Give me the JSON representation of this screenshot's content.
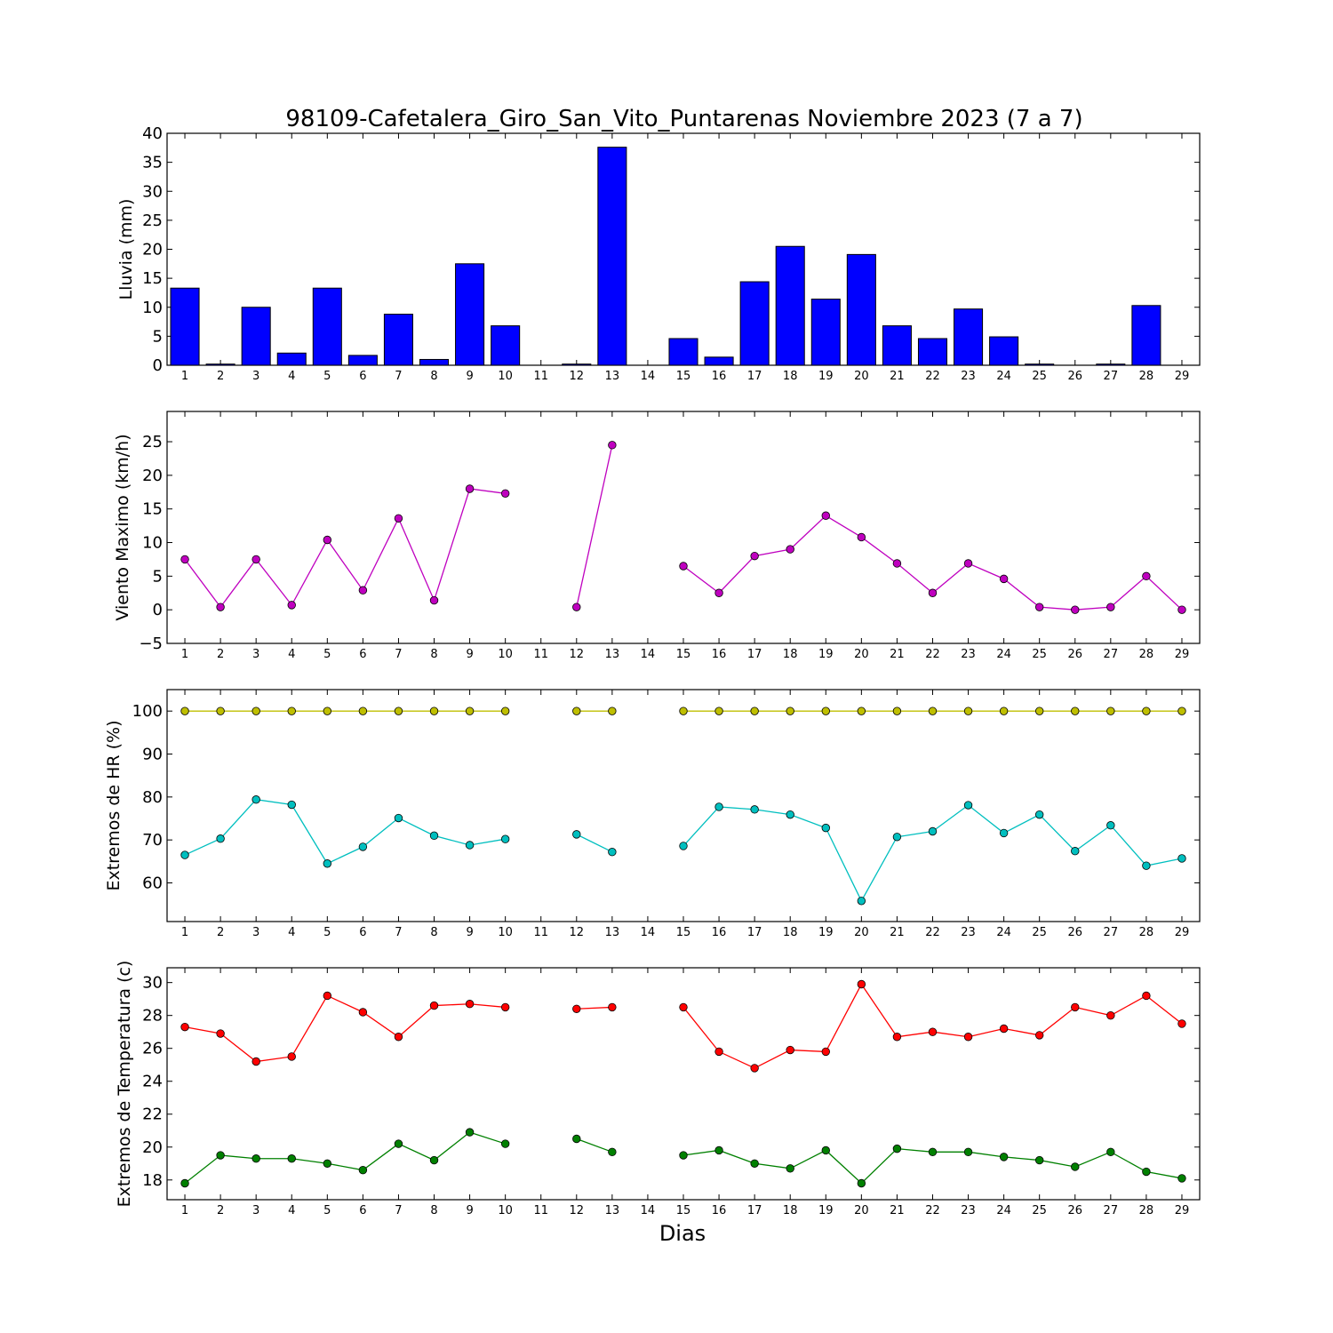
{
  "title": "98109-Cafetalera_Giro_San_Vito_Puntarenas Noviembre 2023  (7 a 7)",
  "xlabel": "Dias",
  "chart_data": [
    {
      "type": "bar",
      "ylabel": "Lluvia (mm)",
      "ylim": [
        0,
        40
      ],
      "yticks": [
        0,
        5,
        10,
        15,
        20,
        25,
        30,
        35,
        40
      ],
      "categories": [
        1,
        2,
        3,
        4,
        5,
        6,
        7,
        8,
        9,
        10,
        11,
        12,
        13,
        14,
        15,
        16,
        17,
        18,
        19,
        20,
        21,
        22,
        23,
        24,
        25,
        26,
        27,
        28,
        29
      ],
      "series": [
        {
          "color": "#0000ff",
          "values": [
            13.3,
            0.2,
            10.0,
            2.1,
            13.3,
            1.7,
            8.8,
            1.0,
            17.5,
            6.8,
            0.0,
            0.2,
            37.6,
            0.0,
            4.6,
            1.4,
            14.4,
            20.5,
            11.4,
            19.1,
            6.8,
            4.6,
            9.7,
            4.9,
            0.2,
            0.0,
            0.2,
            10.3,
            0.0
          ]
        }
      ],
      "grid": false
    },
    {
      "type": "line",
      "ylabel": "Viento Maximo (km/h)",
      "ylim": [
        -5,
        29.5
      ],
      "yticks": [
        -5,
        0,
        5,
        10,
        15,
        20,
        25
      ],
      "x": [
        1,
        2,
        3,
        4,
        5,
        6,
        7,
        8,
        9,
        10,
        11,
        12,
        13,
        14,
        15,
        16,
        17,
        18,
        19,
        20,
        21,
        22,
        23,
        24,
        25,
        26,
        27,
        28,
        29
      ],
      "series": [
        {
          "color": "#bf00bf",
          "values": [
            7.5,
            0.4,
            7.5,
            0.7,
            10.4,
            2.9,
            13.6,
            1.4,
            18.0,
            17.3,
            null,
            0.4,
            24.5,
            null,
            6.5,
            2.5,
            8.0,
            9.0,
            14.0,
            10.8,
            6.9,
            2.5,
            6.9,
            4.6,
            0.4,
            0.0,
            0.4,
            5.0,
            0.0
          ]
        }
      ],
      "grid": false
    },
    {
      "type": "line",
      "ylabel": "Extremos de HR (%)",
      "ylim": [
        51,
        105
      ],
      "yticks": [
        60,
        70,
        80,
        90,
        100
      ],
      "x": [
        1,
        2,
        3,
        4,
        5,
        6,
        7,
        8,
        9,
        10,
        11,
        12,
        13,
        14,
        15,
        16,
        17,
        18,
        19,
        20,
        21,
        22,
        23,
        24,
        25,
        26,
        27,
        28,
        29
      ],
      "series": [
        {
          "color": "#bfbf00",
          "values": [
            100,
            100,
            100,
            100,
            100,
            100,
            100,
            100,
            100,
            100,
            null,
            100,
            100,
            null,
            100,
            100,
            100,
            100,
            100,
            100,
            100,
            100,
            100,
            100,
            100,
            100,
            100,
            100,
            100
          ]
        },
        {
          "color": "#00bfbf",
          "values": [
            66.5,
            70.3,
            79.4,
            78.2,
            64.5,
            68.4,
            75.1,
            71.0,
            68.8,
            70.2,
            null,
            71.3,
            67.2,
            null,
            68.6,
            77.7,
            77.1,
            75.9,
            72.8,
            55.8,
            70.7,
            72.0,
            78.1,
            71.6,
            75.9,
            67.4,
            73.4,
            64.0,
            65.7
          ]
        }
      ],
      "grid": false
    },
    {
      "type": "line",
      "ylabel": "Extremos de Temperatura (c)",
      "ylim": [
        16.8,
        30.9
      ],
      "yticks": [
        18,
        20,
        22,
        24,
        26,
        28,
        30
      ],
      "x": [
        1,
        2,
        3,
        4,
        5,
        6,
        7,
        8,
        9,
        10,
        11,
        12,
        13,
        14,
        15,
        16,
        17,
        18,
        19,
        20,
        21,
        22,
        23,
        24,
        25,
        26,
        27,
        28,
        29
      ],
      "series": [
        {
          "color": "#ff0000",
          "values": [
            27.3,
            26.9,
            25.2,
            25.5,
            29.2,
            28.2,
            26.7,
            28.6,
            28.7,
            28.5,
            null,
            28.4,
            28.5,
            null,
            28.5,
            25.8,
            24.8,
            25.9,
            25.8,
            29.9,
            26.7,
            27.0,
            26.7,
            27.2,
            26.8,
            28.5,
            28.0,
            29.2,
            27.5
          ]
        },
        {
          "color": "#008000",
          "values": [
            17.8,
            19.5,
            19.3,
            19.3,
            19.0,
            18.6,
            20.2,
            19.2,
            20.9,
            20.2,
            null,
            20.5,
            19.7,
            null,
            19.5,
            19.8,
            19.0,
            18.7,
            19.8,
            17.8,
            19.9,
            19.7,
            19.7,
            19.4,
            19.2,
            18.8,
            19.7,
            18.5,
            18.1
          ]
        }
      ],
      "grid": false
    }
  ]
}
